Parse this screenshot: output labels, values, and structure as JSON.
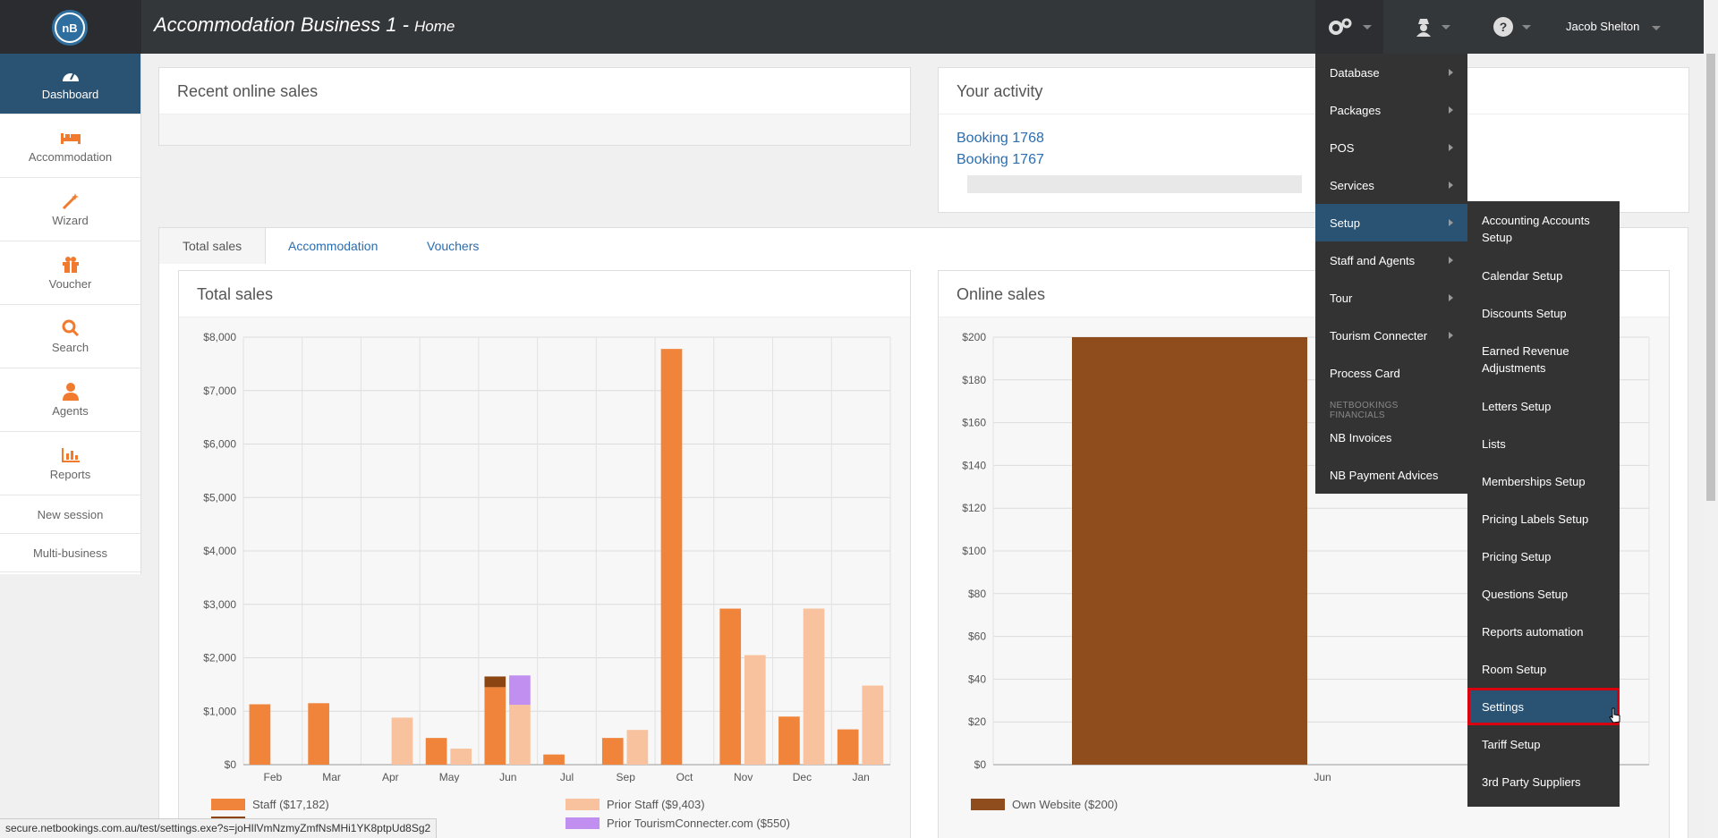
{
  "header": {
    "business_name": "Accommodation Business 1 - ",
    "page_name": "Home",
    "logo_text": "nB",
    "user_name": "Jacob Shelton"
  },
  "sidebar": {
    "items": [
      {
        "label": "Dashboard",
        "icon": "dashboard-icon"
      },
      {
        "label": "Accommodation",
        "icon": "bed-icon"
      },
      {
        "label": "Wizard",
        "icon": "magic-wand-icon"
      },
      {
        "label": "Voucher",
        "icon": "gift-icon"
      },
      {
        "label": "Search",
        "icon": "search-icon"
      },
      {
        "label": "Agents",
        "icon": "agent-icon"
      },
      {
        "label": "Reports",
        "icon": "bar-chart-icon"
      }
    ],
    "links": [
      "New session",
      "Multi-business"
    ]
  },
  "recent_sales": {
    "title": "Recent online sales"
  },
  "activity": {
    "title": "Your activity",
    "links": [
      "Booking 1768",
      "Booking 1767"
    ]
  },
  "tabs": [
    "Total sales",
    "Accommodation",
    "Vouchers"
  ],
  "total_sales": {
    "title": "Total sales"
  },
  "online_sales": {
    "title": "Online sales"
  },
  "menu_settings": {
    "items": [
      "Database",
      "Packages",
      "POS",
      "Services",
      "Setup",
      "Staff and Agents",
      "Tour",
      "Tourism Connecter",
      "Process Card"
    ],
    "section_header": "NETBOOKINGS FINANCIALS",
    "financial_items": [
      "NB Invoices",
      "NB Payment Advices"
    ]
  },
  "menu_setup": {
    "items": [
      "Accounting Accounts Setup",
      "Calendar Setup",
      "Discounts Setup",
      "Earned Revenue Adjustments",
      "Letters Setup",
      "Lists",
      "Memberships Setup",
      "Pricing Labels Setup",
      "Pricing Setup",
      "Questions Setup",
      "Reports automation",
      "Room Setup",
      "Settings",
      "Tariff Setup",
      "3rd Party Suppliers"
    ]
  },
  "status_url": "secure.netbookings.com.au/test/settings.exe?s=joHIlVmNzmyZmfNsMHi1YK8ptpUd8Sg2",
  "colors": {
    "staff": "#f0843a",
    "own_website": "#8b4513",
    "prior_staff": "#f7c29d",
    "prior_tourism": "#c08ff0",
    "online_bar": "#8f4c1c",
    "accent": "#2a5272"
  },
  "chart_data": [
    {
      "type": "bar",
      "title": "Total sales",
      "categories": [
        "Feb",
        "Mar",
        "Apr",
        "May",
        "Jun",
        "Jul",
        "Sep",
        "Oct",
        "Nov",
        "Dec",
        "Jan"
      ],
      "ylim": [
        0,
        8000
      ],
      "y_ticks": [
        "$0",
        "$1,000",
        "$2,000",
        "$3,000",
        "$4,000",
        "$5,000",
        "$6,000",
        "$7,000",
        "$8,000"
      ],
      "series": [
        {
          "name": "Staff ($17,182)",
          "values": [
            1130,
            1150,
            0,
            500,
            1450,
            190,
            500,
            7780,
            2920,
            900,
            660
          ]
        },
        {
          "name": "Own Website ($200)",
          "values": [
            0,
            0,
            0,
            0,
            200,
            0,
            0,
            0,
            0,
            0,
            0
          ]
        },
        {
          "name": "Prior Staff ($9,403)",
          "values": [
            0,
            0,
            880,
            300,
            1120,
            0,
            650,
            0,
            2050,
            2920,
            1480
          ]
        },
        {
          "name": "Prior TourismConnecter.com ($550)",
          "values": [
            0,
            0,
            0,
            0,
            550,
            0,
            0,
            0,
            0,
            0,
            0
          ]
        }
      ],
      "legend": [
        "Staff ($17,182)",
        "Prior Staff ($9,403)",
        "Prior TourismConnecter.com ($550)"
      ]
    },
    {
      "type": "bar",
      "title": "Online sales",
      "categories": [
        "Jun"
      ],
      "ylim": [
        0,
        200
      ],
      "y_ticks": [
        "$0",
        "$20",
        "$40",
        "$60",
        "$80",
        "$100",
        "$120",
        "$140",
        "$160",
        "$180",
        "$200"
      ],
      "series": [
        {
          "name": "Own Website ($200)",
          "values": [
            200
          ]
        }
      ],
      "legend": [
        "Own Website ($200)"
      ]
    }
  ]
}
